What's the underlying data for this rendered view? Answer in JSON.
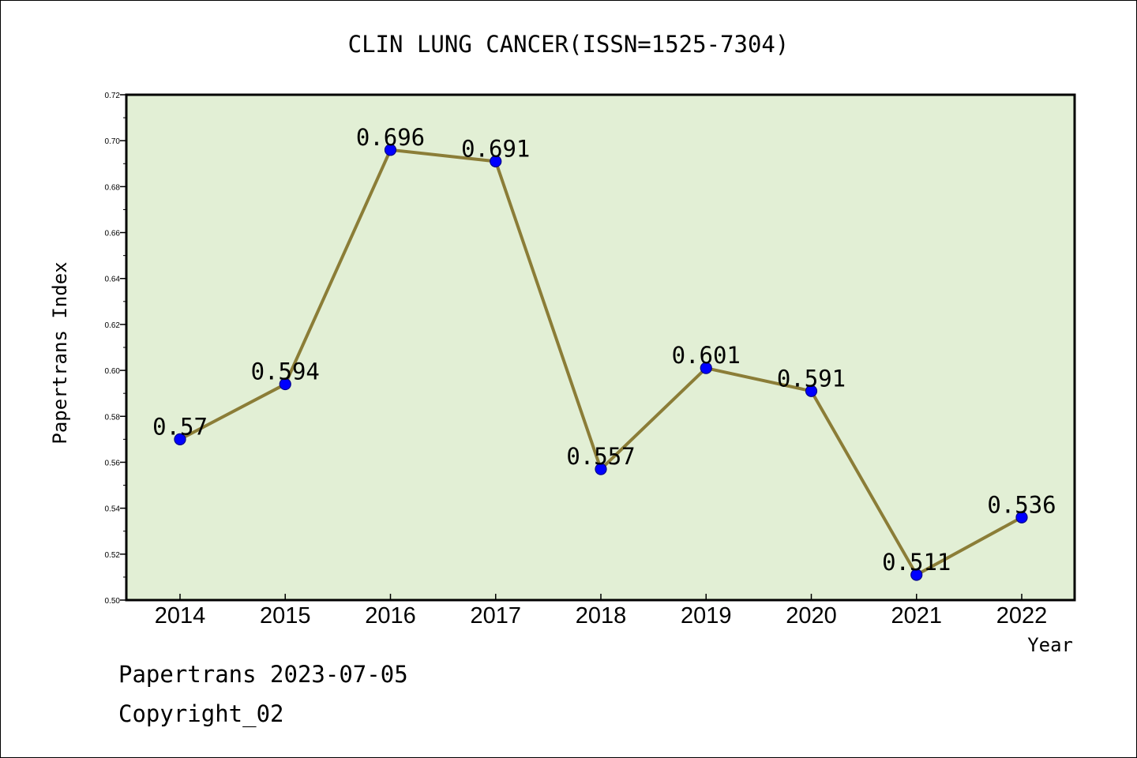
{
  "chart_data": {
    "type": "line",
    "title": "CLIN LUNG CANCER(ISSN=1525-7304)",
    "xlabel": "Year",
    "ylabel": "Papertrans Index",
    "categories": [
      "2014",
      "2015",
      "2016",
      "2017",
      "2018",
      "2019",
      "2020",
      "2021",
      "2022"
    ],
    "values": [
      0.57,
      0.594,
      0.696,
      0.691,
      0.557,
      0.601,
      0.591,
      0.511,
      0.536
    ],
    "data_labels": [
      "0.57",
      "0.594",
      "0.696",
      "0.691",
      "0.557",
      "0.601",
      "0.591",
      "0.511",
      "0.536"
    ],
    "ylim": [
      0.5,
      0.72
    ],
    "yticks": [
      "0.50",
      "0.52",
      "0.54",
      "0.56",
      "0.58",
      "0.60",
      "0.62",
      "0.64",
      "0.66",
      "0.68",
      "0.70",
      "0.72"
    ],
    "grid": false,
    "legend": "none",
    "colors": {
      "plot_background": "#e2efd5",
      "line": "#8b7d37",
      "marker": "#0000ff",
      "marker_edge": "#00008b"
    }
  },
  "footer": {
    "date_line": "Papertrans 2023-07-05",
    "copyright": "Copyright_02"
  }
}
